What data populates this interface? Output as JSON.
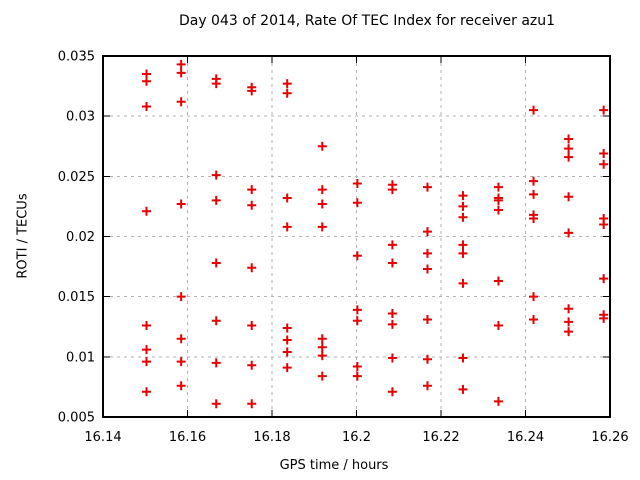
{
  "window": {
    "background": "#ffffff"
  },
  "chart_data": {
    "type": "scatter",
    "title": "Day 043 of 2014, Rate Of TEC Index for receiver azu1",
    "xlabel": "GPS time / hours",
    "ylabel": "ROTI / TECUs",
    "xlim": [
      16.14,
      16.26
    ],
    "ylim": [
      0.005,
      0.035
    ],
    "xtick_values": [
      16.14,
      16.16,
      16.18,
      16.2,
      16.22,
      16.24,
      16.26
    ],
    "xtick_labels": [
      "16.14",
      "16.16",
      "16.18",
      "16.2",
      "16.22",
      "16.24",
      "16.26"
    ],
    "ytick_values": [
      0.005,
      0.01,
      0.015,
      0.02,
      0.025,
      0.03,
      0.035
    ],
    "ytick_labels": [
      "0.005",
      "0.01",
      "0.015",
      "0.02",
      "0.025",
      "0.03",
      "0.035"
    ],
    "grid": true,
    "legend": null,
    "grid_color": "#b3b3b3",
    "border_color": "#000000",
    "marker": {
      "shape": "plus",
      "color": "#e60000",
      "size": 9
    },
    "series": [
      {
        "name": "ROTI",
        "points": [
          [
            16.1503,
            0.0335
          ],
          [
            16.1503,
            0.0329
          ],
          [
            16.1503,
            0.0308
          ],
          [
            16.1503,
            0.0221
          ],
          [
            16.1503,
            0.0126
          ],
          [
            16.1503,
            0.0106
          ],
          [
            16.1503,
            0.0096
          ],
          [
            16.1503,
            0.0071
          ],
          [
            16.1585,
            0.0343
          ],
          [
            16.1585,
            0.0336
          ],
          [
            16.1585,
            0.0312
          ],
          [
            16.1585,
            0.0227
          ],
          [
            16.1585,
            0.015
          ],
          [
            16.1585,
            0.0115
          ],
          [
            16.1585,
            0.0096
          ],
          [
            16.1585,
            0.0076
          ],
          [
            16.1668,
            0.0331
          ],
          [
            16.1668,
            0.0327
          ],
          [
            16.1668,
            0.0251
          ],
          [
            16.1668,
            0.023
          ],
          [
            16.1668,
            0.0178
          ],
          [
            16.1668,
            0.013
          ],
          [
            16.1668,
            0.0095
          ],
          [
            16.1668,
            0.0061
          ],
          [
            16.1752,
            0.0324
          ],
          [
            16.1752,
            0.0321
          ],
          [
            16.1752,
            0.0239
          ],
          [
            16.1752,
            0.0226
          ],
          [
            16.1752,
            0.0174
          ],
          [
            16.1752,
            0.0126
          ],
          [
            16.1752,
            0.0093
          ],
          [
            16.1752,
            0.0061
          ],
          [
            16.1836,
            0.0327
          ],
          [
            16.1836,
            0.0319
          ],
          [
            16.1836,
            0.0232
          ],
          [
            16.1836,
            0.0208
          ],
          [
            16.1836,
            0.0124
          ],
          [
            16.1836,
            0.0114
          ],
          [
            16.1836,
            0.0104
          ],
          [
            16.1836,
            0.0091
          ],
          [
            16.1919,
            0.0275
          ],
          [
            16.1919,
            0.0239
          ],
          [
            16.1919,
            0.0227
          ],
          [
            16.1919,
            0.0208
          ],
          [
            16.1919,
            0.0115
          ],
          [
            16.1919,
            0.0108
          ],
          [
            16.1919,
            0.0101
          ],
          [
            16.1919,
            0.0084
          ],
          [
            16.2002,
            0.0244
          ],
          [
            16.2002,
            0.0228
          ],
          [
            16.2002,
            0.0184
          ],
          [
            16.2002,
            0.0139
          ],
          [
            16.2002,
            0.013
          ],
          [
            16.2002,
            0.0092
          ],
          [
            16.2002,
            0.0084
          ],
          [
            16.2085,
            0.0243
          ],
          [
            16.2085,
            0.0239
          ],
          [
            16.2085,
            0.0193
          ],
          [
            16.2085,
            0.0178
          ],
          [
            16.2085,
            0.0136
          ],
          [
            16.2085,
            0.0127
          ],
          [
            16.2085,
            0.0099
          ],
          [
            16.2085,
            0.0071
          ],
          [
            16.2168,
            0.0241
          ],
          [
            16.2168,
            0.0204
          ],
          [
            16.2168,
            0.0186
          ],
          [
            16.2168,
            0.0173
          ],
          [
            16.2168,
            0.0131
          ],
          [
            16.2168,
            0.0098
          ],
          [
            16.2168,
            0.0076
          ],
          [
            16.2252,
            0.0234
          ],
          [
            16.2252,
            0.0225
          ],
          [
            16.2252,
            0.0216
          ],
          [
            16.2252,
            0.0193
          ],
          [
            16.2252,
            0.0186
          ],
          [
            16.2252,
            0.0161
          ],
          [
            16.2252,
            0.0099
          ],
          [
            16.2252,
            0.0073
          ],
          [
            16.2336,
            0.0241
          ],
          [
            16.2336,
            0.0232
          ],
          [
            16.2336,
            0.023
          ],
          [
            16.2336,
            0.0222
          ],
          [
            16.2336,
            0.0163
          ],
          [
            16.2336,
            0.0126
          ],
          [
            16.2336,
            0.0063
          ],
          [
            16.2419,
            0.0305
          ],
          [
            16.2419,
            0.0246
          ],
          [
            16.2419,
            0.0235
          ],
          [
            16.2419,
            0.0218
          ],
          [
            16.2419,
            0.0215
          ],
          [
            16.2419,
            0.015
          ],
          [
            16.2419,
            0.0131
          ],
          [
            16.2502,
            0.0281
          ],
          [
            16.2502,
            0.0273
          ],
          [
            16.2502,
            0.0266
          ],
          [
            16.2502,
            0.0233
          ],
          [
            16.2502,
            0.0203
          ],
          [
            16.2502,
            0.014
          ],
          [
            16.2502,
            0.0129
          ],
          [
            16.2502,
            0.0121
          ],
          [
            16.2585,
            0.0305
          ],
          [
            16.2585,
            0.0269
          ],
          [
            16.2585,
            0.026
          ],
          [
            16.2585,
            0.0215
          ],
          [
            16.2585,
            0.021
          ],
          [
            16.2585,
            0.0165
          ],
          [
            16.2585,
            0.0135
          ],
          [
            16.2585,
            0.0132
          ]
        ]
      }
    ]
  }
}
